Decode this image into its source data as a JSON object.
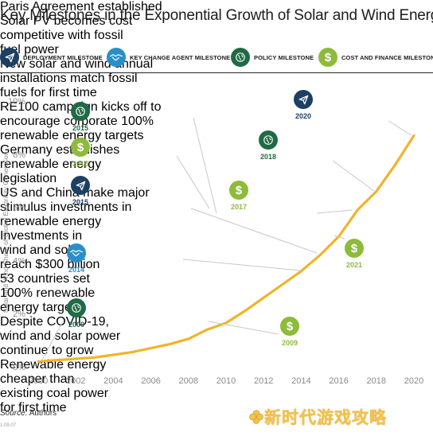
{
  "title": "Key Milestones in the Exponential Growth of Solar and Wind Energy",
  "legend": [
    {
      "label": "DEPLOYMENT MILESTONE",
      "icon": "paper-plane-icon",
      "color": "#1d3f63"
    },
    {
      "label": "KEY CHANGE AGENT MILESTONE",
      "icon": "handshake-icon",
      "color": "#2a8fc9"
    },
    {
      "label": "POLICY MILESTONE",
      "icon": "globe-icon",
      "color": "#1f6b45"
    },
    {
      "label": "COST AND FINANCE MILESTONE",
      "icon": "dollar-icon",
      "color": "#8dbb3a"
    }
  ],
  "colors": {
    "line": "#f0b429",
    "deployment": "#1d3f63",
    "change_agent": "#2a8fc9",
    "policy": "#1f6b45",
    "cost": "#8dbb3a",
    "axis_text": "#8a8a8a",
    "leader": "#c8c8c8"
  },
  "chart_data": {
    "type": "line",
    "title": "Key Milestones in the Exponential Growth of Solar and Wind Energy",
    "xlabel": "",
    "ylabel": "Solar and Wind Share of Global Electricity Generation",
    "x": [
      2000,
      2001,
      2002,
      2003,
      2004,
      2005,
      2006,
      2007,
      2008,
      2009,
      2010,
      2011,
      2012,
      2013,
      2014,
      2015,
      2016,
      2017,
      2018,
      2019,
      2020
    ],
    "values": [
      0.2,
      0.25,
      0.3,
      0.35,
      0.45,
      0.55,
      0.7,
      0.85,
      1.05,
      1.4,
      1.65,
      2.1,
      2.6,
      3.1,
      3.6,
      4.2,
      4.9,
      5.9,
      6.6,
      7.6,
      8.7
    ],
    "xticks": [
      "2000",
      "2002",
      "2004",
      "2006",
      "2008",
      "2010",
      "2012",
      "2014",
      "2016",
      "2018",
      "2020"
    ],
    "yticks": [
      "0%",
      "2%",
      "4%",
      "6%",
      "8%",
      "10%"
    ],
    "xlim": [
      2000,
      2020
    ],
    "ylim": [
      0,
      10
    ],
    "grid": false,
    "legend": "top"
  },
  "milestones": [
    {
      "year": "2015",
      "category": "policy",
      "lines": [
        "Paris Agreement established"
      ]
    },
    {
      "year": "2015",
      "category": "cost",
      "lines": [
        "Solar PV becomes cost",
        "competitive with fossil",
        "fuel power"
      ]
    },
    {
      "year": "2015",
      "category": "deployment",
      "lines": [
        "New solar and wind annual",
        "installations match fossil",
        "fuels for first time"
      ]
    },
    {
      "year": "2014",
      "category": "change_agent",
      "lines": [
        "RE100 campaign kicks off to",
        "encourage corporate 100%",
        "renewable energy targets"
      ]
    },
    {
      "year": "2000",
      "category": "policy",
      "lines": [
        "Germany establishes",
        "renewable energy",
        "legislation"
      ]
    },
    {
      "year": "2009",
      "category": "cost",
      "lines": [
        "US and China make major",
        "stimulus investments in",
        "renewable energy"
      ]
    },
    {
      "year": "2017",
      "category": "cost",
      "lines": [
        "Investments in",
        "wind and solar",
        "reach $300 billion"
      ]
    },
    {
      "year": "2018",
      "category": "policy",
      "lines": [
        "53 countries set",
        "100% renewable",
        "energy targets"
      ]
    },
    {
      "year": "2020",
      "category": "deployment",
      "lines": [
        "Despite COVID-19,",
        "wind and solar power",
        "continue to grow"
      ]
    },
    {
      "year": "2021",
      "category": "cost",
      "lines": [
        "Renewable energy",
        "cheaper than",
        "existing coal power",
        "for first time"
      ]
    }
  ],
  "source": {
    "label": "Source:",
    "value": "Authors"
  },
  "footnote": "1.09.07",
  "watermark": "新时代游戏攻略"
}
